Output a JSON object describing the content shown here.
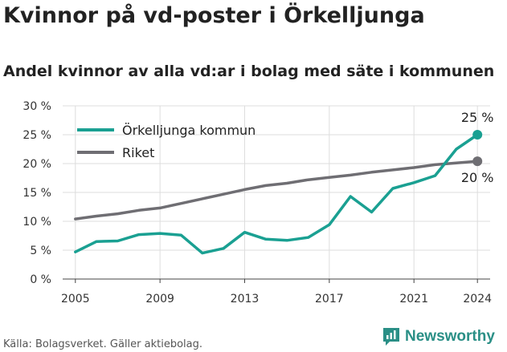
{
  "header": {
    "title": "Kvinnor på vd-poster i Örkelljunga",
    "subtitle": "Andel kvinnor av alla vd:ar i bolag med säte i kommunen"
  },
  "footer": {
    "source": "Källa: Bolagsverket. Gäller aktiebolag.",
    "brand": "Newsworthy"
  },
  "colors": {
    "orkelljunga": "#1aa092",
    "riket": "#6f6e73",
    "grid": "#dddddd",
    "brand": "#2a8f86"
  },
  "chart_data": {
    "type": "line",
    "title": "Kvinnor på vd-poster i Örkelljunga",
    "subtitle": "Andel kvinnor av alla vd:ar i bolag med säte i kommunen",
    "x": [
      2005,
      2006,
      2007,
      2008,
      2009,
      2010,
      2011,
      2012,
      2013,
      2014,
      2015,
      2016,
      2017,
      2018,
      2019,
      2020,
      2021,
      2022,
      2023,
      2024
    ],
    "x_ticks": [
      "2005",
      "2009",
      "2013",
      "2017",
      "2021",
      "2024"
    ],
    "x_tick_values": [
      2005,
      2009,
      2013,
      2017,
      2021,
      2024
    ],
    "y_ticks": [
      "0 %",
      "5 %",
      "10 %",
      "15 %",
      "20 %",
      "25 %",
      "30 %"
    ],
    "y_tick_values": [
      0,
      5,
      10,
      15,
      20,
      25,
      30
    ],
    "ylim": [
      0,
      30
    ],
    "xlim": [
      2004.4,
      2024.6
    ],
    "grid": true,
    "legend_position": "top-left",
    "series": [
      {
        "name": "Örkelljunga kommun",
        "color": "#1aa092",
        "values": [
          4.7,
          6.5,
          6.6,
          7.7,
          7.9,
          7.6,
          4.5,
          5.3,
          8.1,
          6.9,
          6.7,
          7.2,
          9.4,
          14.3,
          11.6,
          15.7,
          16.7,
          17.9,
          22.5,
          25.0
        ],
        "end_label": "25 %"
      },
      {
        "name": "Riket",
        "color": "#6f6e73",
        "values": [
          10.4,
          10.9,
          11.3,
          11.9,
          12.3,
          13.1,
          13.9,
          14.7,
          15.5,
          16.2,
          16.6,
          17.2,
          17.6,
          18.0,
          18.5,
          18.9,
          19.3,
          19.8,
          20.1,
          20.4
        ],
        "end_label": "20 %"
      }
    ]
  }
}
